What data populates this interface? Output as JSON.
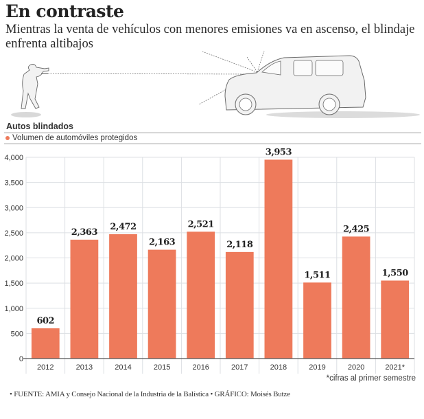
{
  "header": {
    "title": "En contraste",
    "subtitle": "Mientras la venta de vehículos con menores emisiones va en ascenso, el blindaje enfrenta altibajos"
  },
  "illustration": {
    "left_figure": "shooter-with-rifle",
    "right_figure": "armored-suv"
  },
  "chart_data": {
    "type": "bar",
    "title": "Autos blindados",
    "legend": [
      {
        "label": "Volumen de automóviles protegidos",
        "color": "#EE7A5B"
      }
    ],
    "legend_placement": "top-left",
    "categories": [
      "2012",
      "2013",
      "2014",
      "2015",
      "2016",
      "2017",
      "2018",
      "2019",
      "2020",
      "2021*"
    ],
    "series": [
      {
        "name": "Volumen de automóviles protegidos",
        "values": [
          602,
          2363,
          2472,
          2163,
          2521,
          2118,
          3953,
          1511,
          2425,
          1550
        ],
        "color": "#EE7A5B"
      }
    ],
    "data_labels": [
      "602",
      "2,363",
      "2,472",
      "2,163",
      "2,521",
      "2,118",
      "3,953",
      "1,511",
      "2,425",
      "1,550"
    ],
    "yticks": [
      0,
      500,
      1000,
      1500,
      2000,
      2500,
      3000,
      3500,
      4000
    ],
    "ytick_labels": [
      "0",
      "500",
      "1,000",
      "1,500",
      "2,000",
      "2,500",
      "3,000",
      "3,500",
      "4,000"
    ],
    "ylim": [
      0,
      4000
    ],
    "xlabel": "",
    "ylabel": "",
    "grid": true,
    "note": "*cifras al primer semestre"
  },
  "footer": {
    "source": "• FUENTE: AMIA y Consejo Nacional de la Industria de la Balística • GRÁFICO: Moisés Butze"
  }
}
